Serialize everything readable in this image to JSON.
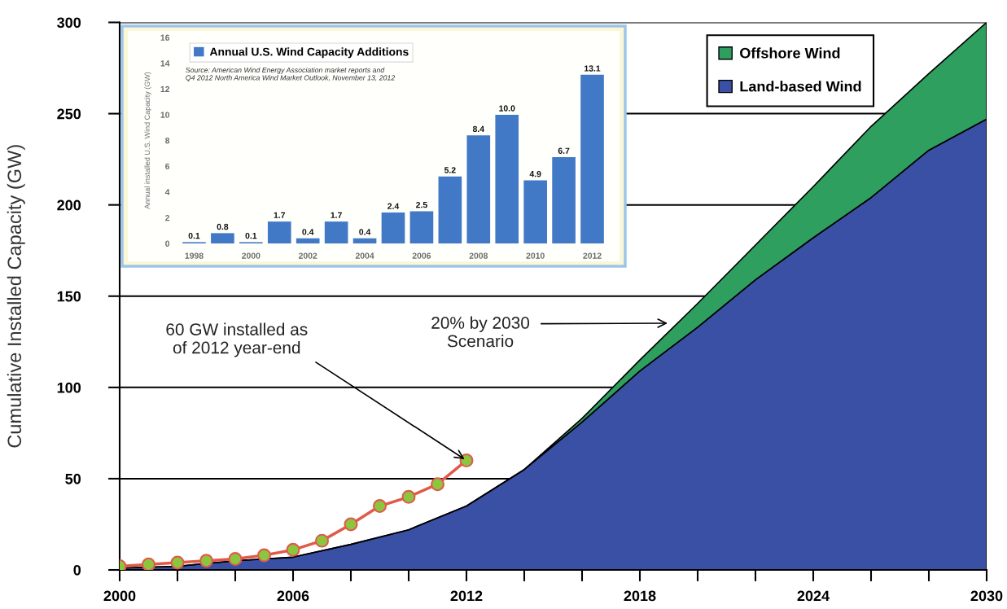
{
  "chart_data": [
    {
      "type": "area",
      "x": [
        2000,
        2002,
        2004,
        2006,
        2008,
        2010,
        2012,
        2014,
        2016,
        2018,
        2020,
        2022,
        2024,
        2026,
        2028,
        2030
      ],
      "stacked": true,
      "series": [
        {
          "name": "Land-based Wind",
          "type": "area",
          "color": "#3a50a5",
          "values": [
            1,
            2,
            5,
            7,
            14,
            22,
            35,
            55,
            81,
            109,
            133,
            159,
            182,
            204,
            230,
            247
          ]
        },
        {
          "name": "Offshore Wind",
          "type": "area",
          "color": "#2e9f5f",
          "values": [
            0,
            0,
            0,
            0,
            0,
            0,
            0,
            0,
            2,
            6,
            13,
            19,
            28,
            39,
            42,
            53
          ]
        },
        {
          "type": "line",
          "x": [
            2000,
            2001,
            2002,
            2003,
            2004,
            2005,
            2006,
            2007,
            2008,
            2009,
            2010,
            2011,
            2012
          ],
          "color": "#e05a4a",
          "colors": [
            "#8cc63f",
            "#8cc63f",
            "#8cc63f",
            "#8cc63f",
            "#8cc63f",
            "#8cc63f",
            "#8cc63f",
            "#8cc63f",
            "#8cc63f",
            "#8cc63f",
            "#8cc63f",
            "#8cc63f",
            "#8cc63f"
          ],
          "marker": "circle",
          "values": [
            2,
            3,
            4,
            5,
            6,
            8,
            11,
            16,
            25,
            35,
            40,
            47,
            60
          ]
        }
      ],
      "xlim": [
        2000,
        2030
      ],
      "xticks": [
        2000,
        {
          "value": 2002,
          "label": null
        },
        {
          "value": 2004,
          "label": null
        },
        2006,
        {
          "value": 2008,
          "label": null
        },
        {
          "value": 2010,
          "label": null
        },
        2012,
        {
          "value": 2014,
          "label": null
        },
        {
          "value": 2016,
          "label": null
        },
        2018,
        {
          "value": 2020,
          "label": null
        },
        {
          "value": 2022,
          "label": null
        },
        2024,
        {
          "value": 2026,
          "label": null
        },
        {
          "value": 2028,
          "label": null
        },
        2030
      ],
      "ylim": [
        0,
        300
      ],
      "yticks": [
        0,
        50,
        100,
        150,
        200,
        250,
        300
      ],
      "ylabel": "Cumulative Installed Capacity (GW)",
      "legend": "top right",
      "grid": "y",
      "annotations": [
        {
          "text": "60 GW installed as\nof 2012 year-end",
          "x": 2012,
          "y": 60
        },
        "20% by 2030\nScenario"
      ]
    },
    {
      "type": "bar",
      "categories": [
        "1998",
        null,
        "2000",
        null,
        "2002",
        null,
        "2004",
        null,
        "2006",
        null,
        "2008",
        null,
        "2010",
        null,
        "2012"
      ],
      "series": [
        {
          "name": "Annual U.S. Wind Capacity Additions",
          "color": "#4279c6",
          "values": [
            0.1,
            0.8,
            0.1,
            1.7,
            0.4,
            1.7,
            0.4,
            2.4,
            2.5,
            5.2,
            8.4,
            10.0,
            4.9,
            6.7,
            13.1
          ],
          "value_labels": [
            "0.1",
            "0.8",
            "0.1",
            "1.7",
            "0.4",
            "1.7",
            "0.4",
            "2.4",
            "2.5",
            "5.2",
            "8.4",
            "10.0",
            "4.9",
            "6.7",
            "13.1"
          ]
        }
      ],
      "ylim": [
        0,
        16
      ],
      "yticks": [
        0,
        2,
        4,
        6,
        8,
        10,
        12,
        14,
        16
      ],
      "ylabel": "Annual installed U.S. Wind Capacity (GW)",
      "legend": "top left",
      "annotations": [
        "Source: American Wind Energy Association market reports and\nQ4 2012 North America Wind Market Outlook, November 13, 2012"
      ]
    }
  ]
}
